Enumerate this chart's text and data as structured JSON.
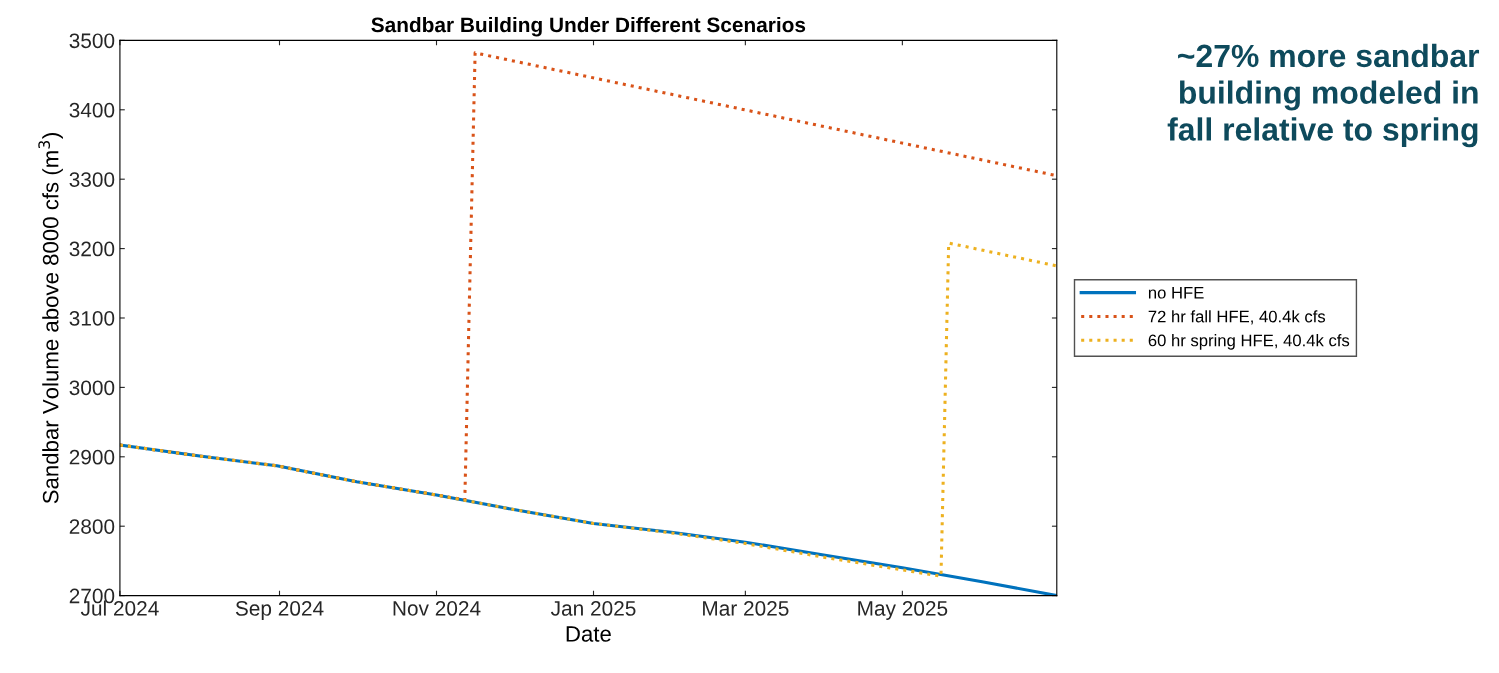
{
  "chart_data": {
    "type": "line",
    "title": "Sandbar Building Under Different Scenarios",
    "xlabel": "Date",
    "ylabel": "Sandbar Volume above 8000 cfs (m$^{3}$)",
    "annotations": [
      "~27% more sandbar\nbuilding modeled in\nfall relative to spring"
    ],
    "xlim": [
      "2024-07-01",
      "2025-06-30"
    ],
    "xticks": [
      {
        "value": "2024-07-01",
        "label": "Jul 2024"
      },
      {
        "value": "2024-09-01",
        "label": "Sep 2024"
      },
      {
        "value": "2024-11-01",
        "label": "Nov 2024"
      },
      {
        "value": "2025-01-01",
        "label": "Jan 2025"
      },
      {
        "value": "2025-03-01",
        "label": "Mar 2025"
      },
      {
        "value": "2025-05-01",
        "label": "May 2025"
      }
    ],
    "ylim": [
      2700,
      3500
    ],
    "yticks": [
      2700,
      2800,
      2900,
      3000,
      3100,
      3200,
      3300,
      3400,
      3500
    ],
    "grid": false,
    "legend": "right",
    "marker": "none",
    "series": [
      {
        "name": "no HFE",
        "color": "#0072bd",
        "line_style": "solid",
        "x": [
          "2024-07-01",
          "2024-08-01",
          "2024-08-31",
          "2024-10-01",
          "2024-11-01",
          "2024-12-01",
          "2025-01-01",
          "2025-02-01",
          "2025-03-01",
          "2025-04-01",
          "2025-05-01",
          "2025-06-01",
          "2025-06-30"
        ],
        "values": [
          2917,
          2901,
          2887,
          2864,
          2845,
          2824,
          2804,
          2791,
          2777,
          2758,
          2740,
          2720,
          2700
        ]
      },
      {
        "name": "72 hr fall HFE, 40.4k cfs",
        "color": "#d95319",
        "line_style": "dotted",
        "x": [
          "2024-07-01",
          "2024-08-01",
          "2024-08-31",
          "2024-10-01",
          "2024-11-01",
          "2024-11-12",
          "2024-11-16",
          "2025-06-30"
        ],
        "values": [
          2917,
          2901,
          2887,
          2864,
          2845,
          2838,
          3482,
          3305
        ]
      },
      {
        "name": "60 hr spring HFE, 40.4k cfs",
        "color": "#edb120",
        "line_style": "dotted",
        "x": [
          "2024-07-01",
          "2024-08-01",
          "2024-08-31",
          "2024-10-01",
          "2024-11-01",
          "2024-12-01",
          "2025-01-01",
          "2025-02-01",
          "2025-03-01",
          "2025-04-01",
          "2025-05-01",
          "2025-05-16",
          "2025-05-19",
          "2025-06-30"
        ],
        "values": [
          2917,
          2901,
          2887,
          2864,
          2845,
          2824,
          2804,
          2790,
          2775,
          2755,
          2737,
          2728,
          3208,
          3175
        ]
      }
    ]
  }
}
